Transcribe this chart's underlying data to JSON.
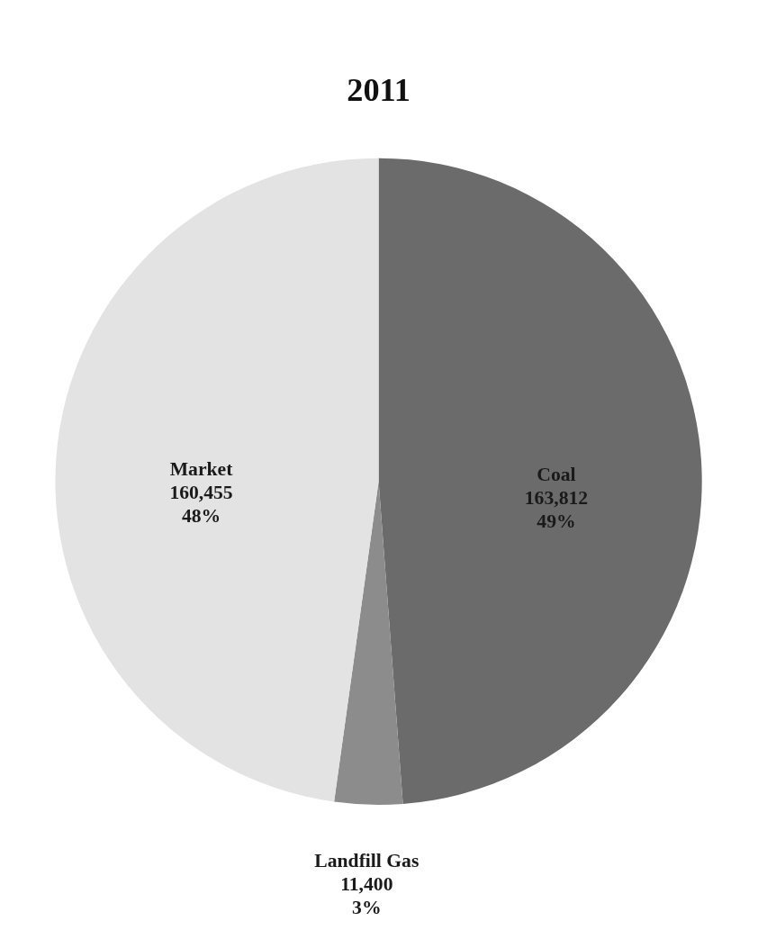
{
  "chart_data": {
    "type": "pie",
    "title": "2011",
    "categories": [
      "Coal",
      "Landfill Gas",
      "Market"
    ],
    "values": [
      163812,
      11400,
      160455
    ],
    "colors": [
      "#6b6b6b",
      "#8c8c8c",
      "#e3e3e3"
    ],
    "value_labels": [
      "163,812\n49%",
      "11,400\n3%",
      "160,455\n48%"
    ],
    "legend": false
  }
}
